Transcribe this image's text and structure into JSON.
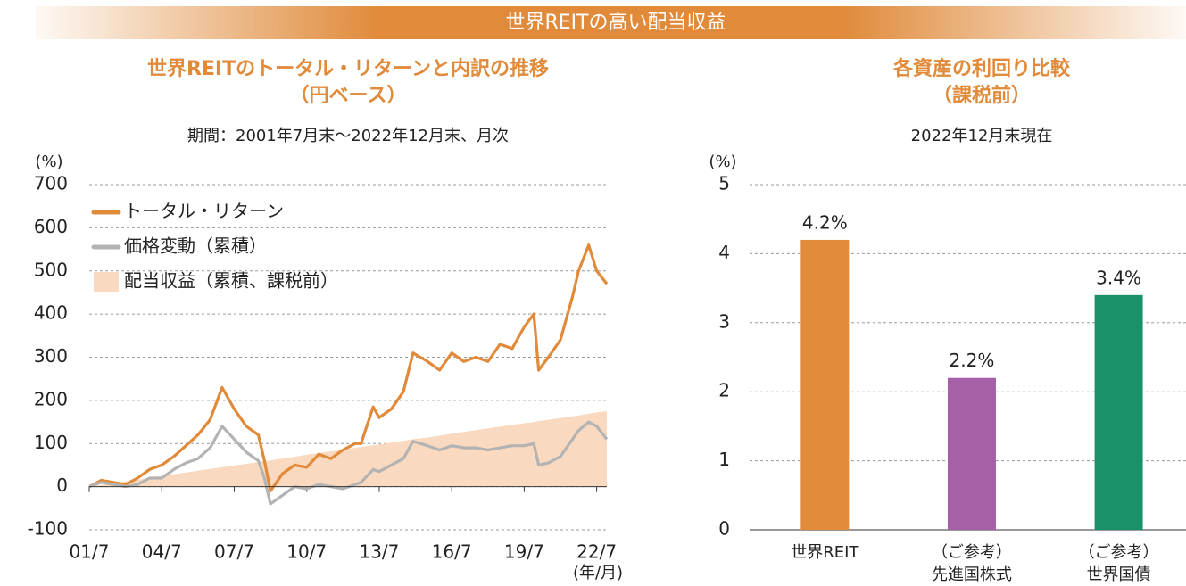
{
  "banner": "世界REITの高い配当収益",
  "chart_data": [
    {
      "type": "line",
      "title": [
        "世界REITのトータル・リターンと内訳の推移",
        "（円ベース）"
      ],
      "subtitle": "期間：2001年7月末～2022年12月末、月次",
      "y_label": "(%)",
      "x_label": "(年/月)",
      "x": [
        2001.5,
        2002,
        2002.5,
        2003,
        2003.5,
        2004,
        2004.5,
        2005,
        2005.5,
        2006,
        2006.5,
        2007,
        2007.5,
        2008,
        2008.5,
        2008.75,
        2009,
        2009.5,
        2010,
        2010.5,
        2011,
        2011.5,
        2012,
        2012.5,
        2012.75,
        2013.25,
        2013.5,
        2014,
        2014.5,
        2014.9,
        2015.5,
        2016,
        2016.5,
        2017,
        2017.5,
        2018,
        2018.5,
        2019,
        2019.5,
        2019.9,
        2020.1,
        2020.5,
        2021,
        2021.5,
        2021.75,
        2022.17,
        2022.5,
        2022.92
      ],
      "series": [
        {
          "name": "トータル・リターン",
          "color": "#e08a3a",
          "style": "line",
          "values": [
            0,
            15,
            10,
            5,
            20,
            40,
            50,
            70,
            95,
            120,
            155,
            230,
            180,
            140,
            120,
            60,
            -10,
            30,
            50,
            45,
            75,
            65,
            85,
            100,
            100,
            185,
            160,
            180,
            220,
            310,
            290,
            270,
            310,
            290,
            300,
            290,
            330,
            320,
            370,
            400,
            270,
            300,
            340,
            440,
            500,
            560,
            500,
            470
          ]
        },
        {
          "name": "価格変動（累積）",
          "color": "#b3b3b3",
          "style": "line",
          "values": [
            0,
            10,
            5,
            0,
            5,
            20,
            20,
            40,
            55,
            65,
            90,
            140,
            110,
            80,
            60,
            20,
            -40,
            -20,
            0,
            -5,
            5,
            0,
            -5,
            5,
            10,
            40,
            35,
            50,
            65,
            105,
            95,
            85,
            95,
            90,
            90,
            85,
            90,
            95,
            95,
            100,
            50,
            55,
            70,
            110,
            130,
            150,
            140,
            110
          ]
        },
        {
          "name": "配当収益（累積、課税前）",
          "color": "#f9d9bf",
          "style": "area",
          "values": [
            0,
            4,
            8,
            12,
            16,
            20,
            25,
            29,
            33,
            37,
            41,
            45,
            49,
            53,
            57,
            59,
            61,
            65,
            69,
            74,
            78,
            82,
            86,
            90,
            92,
            96,
            98,
            102,
            106,
            110,
            114,
            118,
            123,
            127,
            131,
            135,
            139,
            143,
            147,
            150,
            152,
            155,
            159,
            163,
            165,
            169,
            172,
            175
          ]
        }
      ],
      "xlim": [
        2001.5,
        2022.92
      ],
      "xticks": [
        {
          "value": 2001.5,
          "label": "01/7"
        },
        {
          "value": 2004.5,
          "label": "04/7"
        },
        {
          "value": 2007.5,
          "label": "07/7"
        },
        {
          "value": 2010.5,
          "label": "10/7"
        },
        {
          "value": 2013.5,
          "label": "13/7"
        },
        {
          "value": 2016.5,
          "label": "16/7"
        },
        {
          "value": 2019.5,
          "label": "19/7"
        },
        {
          "value": 2022.5,
          "label": "22/7"
        }
      ],
      "ylim": [
        -100,
        700
      ],
      "yticks": [
        -100,
        0,
        100,
        200,
        300,
        400,
        500,
        600,
        700
      ],
      "grid": true,
      "legend": "upper left"
    },
    {
      "type": "bar",
      "title": [
        "各資産の利回り比較",
        "（課税前）"
      ],
      "subtitle": "2022年12月末現在",
      "y_label": "(%)",
      "categories": [
        [
          "世界REIT"
        ],
        [
          "（ご参考）",
          "先進国株式"
        ],
        [
          "（ご参考）",
          "世界国債"
        ]
      ],
      "values": [
        4.2,
        2.2,
        3.4
      ],
      "value_labels": [
        "4.2%",
        "2.2%",
        "3.4%"
      ],
      "colors": [
        "#e08a3a",
        "#a660a8",
        "#1a9269"
      ],
      "ylim": [
        0,
        5
      ],
      "yticks": [
        0,
        1,
        2,
        3,
        4,
        5
      ],
      "grid": true
    }
  ]
}
